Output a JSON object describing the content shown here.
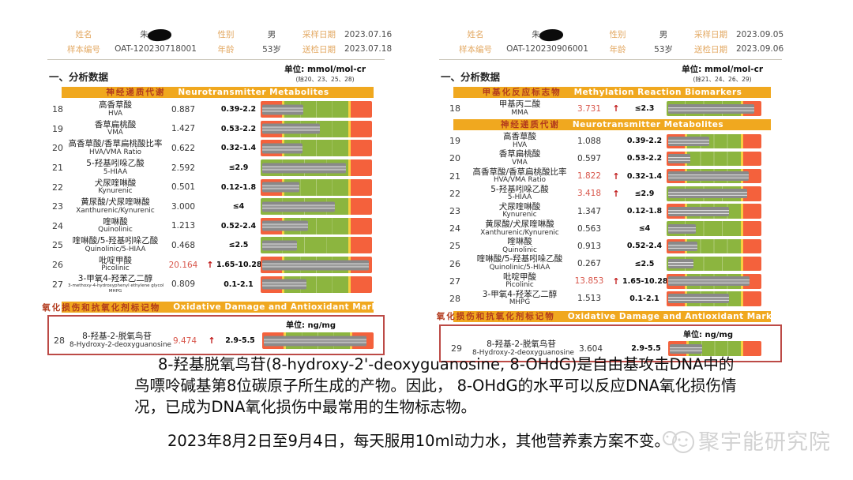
{
  "colors": {
    "section_header_bg": "#F0A81F",
    "section_header_cn_text": "#B23A1D",
    "normal_zone_green": "#8CB53F",
    "abnormal_zone_red": "#F4613C",
    "zone_divider_yellow": "#F7CF40",
    "marker_gray": "#8b8b8b",
    "flag_red": "#C01818",
    "abnormal_value_red": "#D8564B",
    "highlight_box_border": "#BC4A46",
    "header_label_orange": "#E3A963",
    "watermark_gray": "#d2d2d2"
  },
  "panels": [
    {
      "header": {
        "name_label": "姓名",
        "name_value": "朱",
        "gender_label": "性别",
        "gender_value": "男",
        "sample_date_label": "采样日期",
        "sample_date_value": "2023.07.16",
        "sample_id_label": "样本编号",
        "sample_id_value": "OAT-120230718001",
        "age_label": "年龄",
        "age_value": "53岁",
        "test_date_label": "送检日期",
        "test_date_value": "2023.07.18"
      },
      "section_title": "一、分析数据",
      "unit_main": "单位: mmol/mol-cr",
      "unit_note": "(除20、23、25、28)",
      "groups": [
        {
          "header_cn": "神经递质代谢",
          "header_en": "Neurotransmitter Metabolites",
          "rows": [
            {
              "no": "18",
              "cn": "高香草酸",
              "en": "HVA",
              "value": "0.887",
              "flag": "",
              "range": "0.39-2.2",
              "bar": "band",
              "marker": 37
            },
            {
              "no": "19",
              "cn": "香草扁桃酸",
              "en": "VMA",
              "value": "1.427",
              "flag": "",
              "range": "0.53-2.2",
              "bar": "band",
              "marker": 52
            },
            {
              "no": "20",
              "cn": "高香草酸/香草扁桃酸比率",
              "en": "HVA/VMA Ratio",
              "value": "0.622",
              "flag": "",
              "range": "0.32-1.4",
              "bar": "band",
              "marker": 36
            },
            {
              "no": "21",
              "cn": "5-羟基吲哚乙酸",
              "en": "5-HIAA",
              "value": "2.592",
              "flag": "",
              "range": "≤2.9",
              "bar": "le",
              "marker": 75
            },
            {
              "no": "22",
              "cn": "犬尿喹啉酸",
              "en": "Kynurenic",
              "value": "0.501",
              "flag": "",
              "range": "0.12-1.8",
              "bar": "band",
              "marker": 33
            },
            {
              "no": "23",
              "cn": "黄尿酸/犬尿喹啉酸",
              "en": "Xanthurenic/Kynurenic",
              "value": "3.000",
              "flag": "",
              "range": "≤4",
              "bar": "le",
              "marker": 65
            },
            {
              "no": "24",
              "cn": "喹啉酸",
              "en": "Quinolinic",
              "value": "1.213",
              "flag": "",
              "range": "0.52-2.4",
              "bar": "band",
              "marker": 41
            },
            {
              "no": "25",
              "cn": "喹啉酸/5-羟基吲哚乙酸",
              "en": "Quinolinic/5-HIAA",
              "value": "0.468",
              "flag": "",
              "range": "≤2.5",
              "bar": "le",
              "marker": 31
            },
            {
              "no": "26",
              "cn": "吡啶甲酸",
              "en": "Picolinic",
              "value": "20.164",
              "flag": "up",
              "range": "1.65-10.28",
              "bar": "band",
              "marker": 96
            },
            {
              "no": "27",
              "cn": "3-甲氧4-羟苯乙二醇",
              "en": "3-methoxy-4-hydroxyphenyl ethylene glycol",
              "en2": "MHPG",
              "value": "0.809",
              "flag": "",
              "range": "0.1-2.1",
              "bar": "band",
              "marker": 40
            }
          ]
        }
      ],
      "oxidative": {
        "header_cn": "氧化损伤和抗氧化剂标记物",
        "header_en": "Oxidative Damage and Antioxidant Markers",
        "unit": "单位: ng/mg",
        "row": {
          "no": "28",
          "cn": "8-羟基-2-脱氧鸟苷",
          "en": "8-Hydroxy-2-deoxyguanosine",
          "value": "9.474",
          "flag": "up",
          "range": "2.9-5.5",
          "bar": "band",
          "marker": 92
        }
      }
    },
    {
      "header": {
        "name_label": "姓名",
        "name_value": "朱",
        "gender_label": "性别",
        "gender_value": "男",
        "sample_date_label": "采样日期",
        "sample_date_value": "2023.09.05",
        "sample_id_label": "样本编号",
        "sample_id_value": "OAT-120230906001",
        "age_label": "年龄",
        "age_value": "53岁",
        "test_date_label": "送检日期",
        "test_date_value": "2023.09.06"
      },
      "section_title": "一、分析数据",
      "unit_main": "单位: mmol/mol-cr",
      "unit_note": "(除21、24、26、29)",
      "groups": [
        {
          "header_cn": "甲基化反应标志物",
          "header_en": "Methylation Reaction Biomarkers",
          "rows": [
            {
              "no": "18",
              "cn": "甲基丙二酸",
              "en": "MMA",
              "value": "3.731",
              "flag": "up",
              "range": "≤2.3",
              "bar": "le",
              "marker": 91
            }
          ]
        },
        {
          "header_cn": "神经递质代谢",
          "header_en": "Neurotransmitter Metabolites",
          "rows": [
            {
              "no": "19",
              "cn": "高香草酸",
              "en": "HVA",
              "value": "1.088",
              "flag": "",
              "range": "0.39-2.2",
              "bar": "band",
              "marker": 43
            },
            {
              "no": "20",
              "cn": "香草扁桃酸",
              "en": "VMA",
              "value": "0.597",
              "flag": "",
              "range": "0.53-2.2",
              "bar": "band",
              "marker": 23
            },
            {
              "no": "21",
              "cn": "高香草酸/香草扁桃酸比率",
              "en": "HVA/VMA Ratio",
              "value": "1.822",
              "flag": "up",
              "range": "0.32-1.4",
              "bar": "band",
              "marker": 85
            },
            {
              "no": "22",
              "cn": "5-羟基吲哚乙酸",
              "en": "5-HIAA",
              "value": "3.418",
              "flag": "up",
              "range": "≤2.9",
              "bar": "le",
              "marker": 83
            },
            {
              "no": "23",
              "cn": "犬尿喹啉酸",
              "en": "Kynurenic",
              "value": "1.347",
              "flag": "",
              "range": "0.12-1.8",
              "bar": "band",
              "marker": 64
            },
            {
              "no": "24",
              "cn": "黄尿酸/犬尿喹啉酸",
              "en": "Xanthurenic/Kynurenic",
              "value": "0.563",
              "flag": "",
              "range": "≤4",
              "bar": "le",
              "marker": 29
            },
            {
              "no": "25",
              "cn": "喹啉酸",
              "en": "Quinolinic",
              "value": "0.913",
              "flag": "",
              "range": "0.52-2.4",
              "bar": "band",
              "marker": 31
            },
            {
              "no": "26",
              "cn": "喹啉酸/5-羟基吲哚乙酸",
              "en": "Quinolinic/5-HIAA",
              "value": "0.267",
              "flag": "",
              "range": "≤2.5",
              "bar": "le",
              "marker": 27
            },
            {
              "no": "27",
              "cn": "吡啶甲酸",
              "en": "Picolinic",
              "value": "13.853",
              "flag": "up",
              "range": "1.65-10.28",
              "bar": "band",
              "marker": 86
            },
            {
              "no": "28",
              "cn": "3-甲氧4-羟苯乙二醇",
              "en": "MHPG",
              "value": "1.513",
              "flag": "",
              "range": "0.1-2.1",
              "bar": "band",
              "marker": 64
            }
          ]
        }
      ],
      "oxidative": {
        "header_cn": "氧化损伤和抗氧化剂标记物",
        "header_en": "Oxidative Damage and Antioxidant Markers",
        "unit": "单位: ng/mg",
        "row": {
          "no": "29",
          "cn": "8-羟基-2-脱氧鸟苷",
          "en": "8-Hydroxy-2-deoxyguanosine",
          "value": "3.604",
          "flag": "",
          "range": "2.9-5.5",
          "bar": "band",
          "marker": 35
        }
      }
    }
  ],
  "footer": {
    "paragraph": "8-羟基脱氧鸟苷(8-hydroxy-2'-deoxyguanosine, 8-OHdG)是自由基攻击DNA中的鸟嘌呤碱基第8位碳原子所生成的产物。因此， 8-OHdG的水平可以反应DNA氧化损伤情况，已成为DNA氧化损伤中最常用的生物标志物。",
    "note": "2023年8月2日至9月4日，每天服用10ml动力水，其他营养素方案不变。",
    "watermark_text": "聚宇能研究院"
  }
}
